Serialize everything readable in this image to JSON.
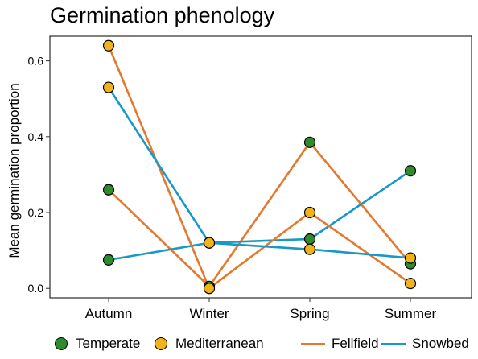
{
  "chart_data": {
    "type": "line",
    "title": "Germination phenology",
    "xlabel": "",
    "ylabel": "Mean germination proportion",
    "categories": [
      "Autumn",
      "Winter",
      "Spring",
      "Summer"
    ],
    "ylim": [
      -0.025,
      0.665
    ],
    "yticks": [
      0.0,
      0.2,
      0.4,
      0.6
    ],
    "ytick_labels": [
      "0.0",
      "0.2",
      "0.4",
      "0.6"
    ],
    "grid": false,
    "legend_position": "bottom",
    "series": [
      {
        "region": "Temperate",
        "habitat": "Fellfield",
        "values": [
          0.26,
          0.005,
          0.385,
          0.065
        ]
      },
      {
        "region": "Temperate",
        "habitat": "Snowbed",
        "values": [
          0.075,
          0.12,
          0.13,
          0.31
        ]
      },
      {
        "region": "Mediterranean",
        "habitat": "Fellfield",
        "values": [
          0.64,
          0.0,
          0.2,
          0.013
        ]
      },
      {
        "region": "Mediterranean",
        "habitat": "Snowbed",
        "values": [
          0.53,
          0.12,
          0.103,
          0.08
        ]
      }
    ],
    "legend": {
      "fill": [
        {
          "label": "Temperate",
          "color": "#2e8b2e"
        },
        {
          "label": "Mediterranean",
          "color": "#f2b21b"
        }
      ],
      "colour": [
        {
          "label": "Fellfield",
          "color": "#e4782e"
        },
        {
          "label": "Snowbed",
          "color": "#1798c6"
        }
      ]
    }
  }
}
